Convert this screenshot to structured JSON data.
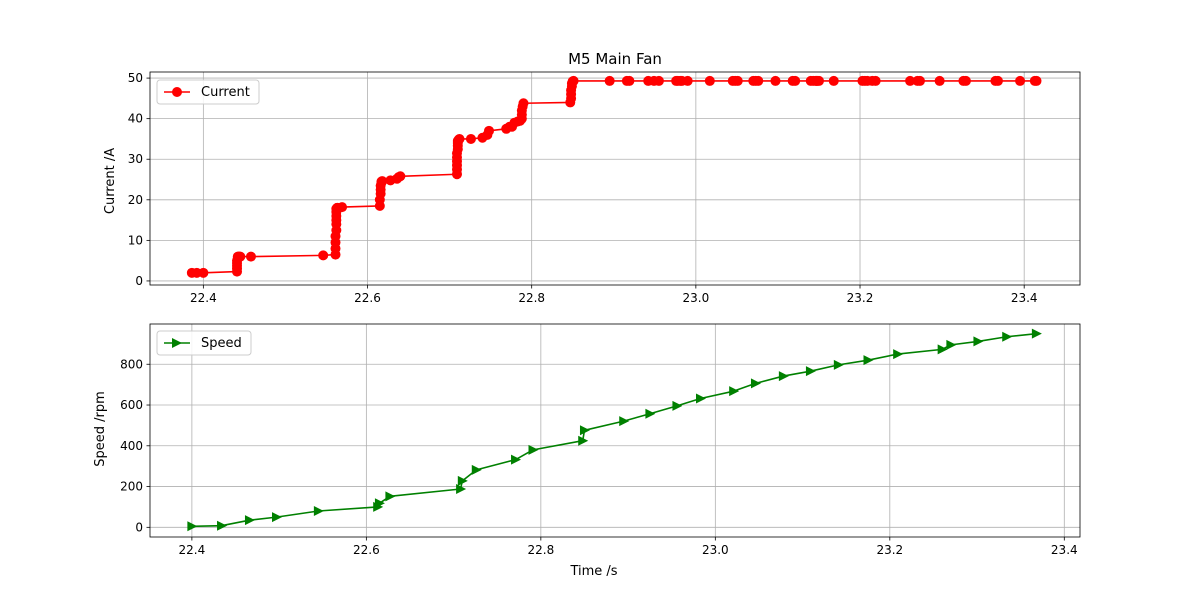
{
  "chart_data": [
    {
      "type": "line",
      "title": "M5 Main Fan",
      "xlabel": "",
      "ylabel": "Current /A",
      "xlim": [
        22.335,
        23.468
      ],
      "ylim": [
        -1,
        51.5
      ],
      "xticks": [
        22.4,
        22.6,
        22.8,
        23.0,
        23.2,
        23.4
      ],
      "xtick_labels": [
        "22.4",
        "22.6",
        "22.8",
        "23.0",
        "23.2",
        "23.4"
      ],
      "yticks": [
        0,
        10,
        20,
        30,
        40,
        50
      ],
      "ytick_labels": [
        "0",
        "10",
        "20",
        "30",
        "40",
        "50"
      ],
      "grid": true,
      "legend_position": "top-left",
      "color": "#ff0000",
      "marker": "circle",
      "series": [
        {
          "name": "Current",
          "x": [
            22.386,
            22.392,
            22.4,
            22.441,
            22.441,
            22.441,
            22.441,
            22.441,
            22.442,
            22.442,
            22.442,
            22.443,
            22.444,
            22.445,
            22.458,
            22.546,
            22.561,
            22.561,
            22.561,
            22.561,
            22.562,
            22.562,
            22.562,
            22.562,
            22.562,
            22.562,
            22.563,
            22.563,
            22.564,
            22.569,
            22.615,
            22.615,
            22.616,
            22.616,
            22.616,
            22.617,
            22.617,
            22.618,
            22.628,
            22.636,
            22.638,
            22.64,
            22.709,
            22.709,
            22.709,
            22.709,
            22.709,
            22.709,
            22.71,
            22.71,
            22.71,
            22.71,
            22.711,
            22.712,
            22.726,
            22.74,
            22.746,
            22.748,
            22.769,
            22.773,
            22.776,
            22.779,
            22.783,
            22.786,
            22.788,
            22.788,
            22.788,
            22.789,
            22.79,
            22.847,
            22.848,
            22.848,
            22.848,
            22.849,
            22.849,
            22.85,
            22.851,
            22.895,
            22.916,
            22.919,
            22.942,
            22.949,
            22.955,
            22.976,
            22.978,
            22.981,
            22.983,
            22.99,
            23.017,
            23.045,
            23.048,
            23.051,
            23.07,
            23.073,
            23.076,
            23.097,
            23.118,
            23.121,
            23.14,
            23.143,
            23.146,
            23.147,
            23.148,
            23.15,
            23.168,
            23.203,
            23.206,
            23.209,
            23.215,
            23.219,
            23.261,
            23.27,
            23.273,
            23.297,
            23.326,
            23.329,
            23.365,
            23.368,
            23.395,
            23.413,
            23.415
          ],
          "y": [
            2.0,
            2.0,
            2.0,
            2.3,
            3.0,
            3.7,
            4.4,
            5.0,
            5.5,
            5.8,
            6.0,
            6.0,
            6.0,
            6.0,
            6.0,
            6.3,
            6.5,
            8.0,
            9.5,
            11.0,
            12.5,
            14.0,
            15.0,
            16.0,
            17.0,
            17.8,
            18.0,
            18.0,
            18.0,
            18.2,
            18.5,
            20.0,
            21.5,
            22.5,
            23.5,
            24.3,
            24.5,
            24.6,
            24.8,
            25.2,
            25.6,
            25.8,
            26.3,
            27.5,
            28.5,
            29.5,
            30.5,
            31.5,
            32.5,
            33.3,
            34.0,
            34.5,
            34.8,
            35.0,
            35.0,
            35.3,
            36.0,
            37.0,
            37.5,
            38.0,
            38.0,
            39.0,
            39.3,
            39.5,
            40.0,
            41.0,
            42.0,
            43.0,
            43.8,
            44.0,
            45.0,
            46.0,
            47.0,
            48.0,
            48.7,
            49.2,
            49.3,
            49.3,
            49.3,
            49.3,
            49.3,
            49.3,
            49.3,
            49.3,
            49.3,
            49.3,
            49.3,
            49.3,
            49.3,
            49.3,
            49.3,
            49.3,
            49.3,
            49.3,
            49.3,
            49.3,
            49.3,
            49.3,
            49.3,
            49.3,
            49.3,
            49.3,
            49.3,
            49.3,
            49.3,
            49.3,
            49.3,
            49.3,
            49.3,
            49.3,
            49.3,
            49.3,
            49.3,
            49.3,
            49.3,
            49.3,
            49.3,
            49.3,
            49.3,
            49.3,
            49.3
          ]
        }
      ]
    },
    {
      "type": "line",
      "title": "",
      "xlabel": "Time /s",
      "ylabel": "Speed /rpm",
      "xlim": [
        22.352,
        23.418
      ],
      "ylim": [
        -47.5,
        997.5
      ],
      "xticks": [
        22.4,
        22.6,
        22.8,
        23.0,
        23.2,
        23.4
      ],
      "xtick_labels": [
        "22.4",
        "22.6",
        "22.8",
        "23.0",
        "23.2",
        "23.4"
      ],
      "yticks": [
        0,
        200,
        400,
        600,
        800
      ],
      "ytick_labels": [
        "0",
        "200",
        "400",
        "600",
        "800"
      ],
      "grid": true,
      "legend_position": "top-left",
      "color": "#008000",
      "marker": "triangle-right",
      "series": [
        {
          "name": "Speed",
          "x": [
            22.4,
            22.434,
            22.466,
            22.497,
            22.545,
            22.613,
            22.615,
            22.627,
            22.708,
            22.71,
            22.726,
            22.771,
            22.791,
            22.848,
            22.85,
            22.895,
            22.925,
            22.956,
            22.983,
            23.021,
            23.046,
            23.078,
            23.109,
            23.141,
            23.175,
            23.209,
            23.26,
            23.27,
            23.301,
            23.334,
            23.368
          ],
          "y": [
            5,
            8,
            35,
            50,
            80,
            100,
            118,
            152,
            188,
            228,
            282,
            332,
            380,
            425,
            476,
            521,
            557,
            596,
            632,
            668,
            706,
            742,
            766,
            797,
            820,
            850,
            873,
            895,
            912,
            935,
            950
          ]
        }
      ]
    }
  ]
}
